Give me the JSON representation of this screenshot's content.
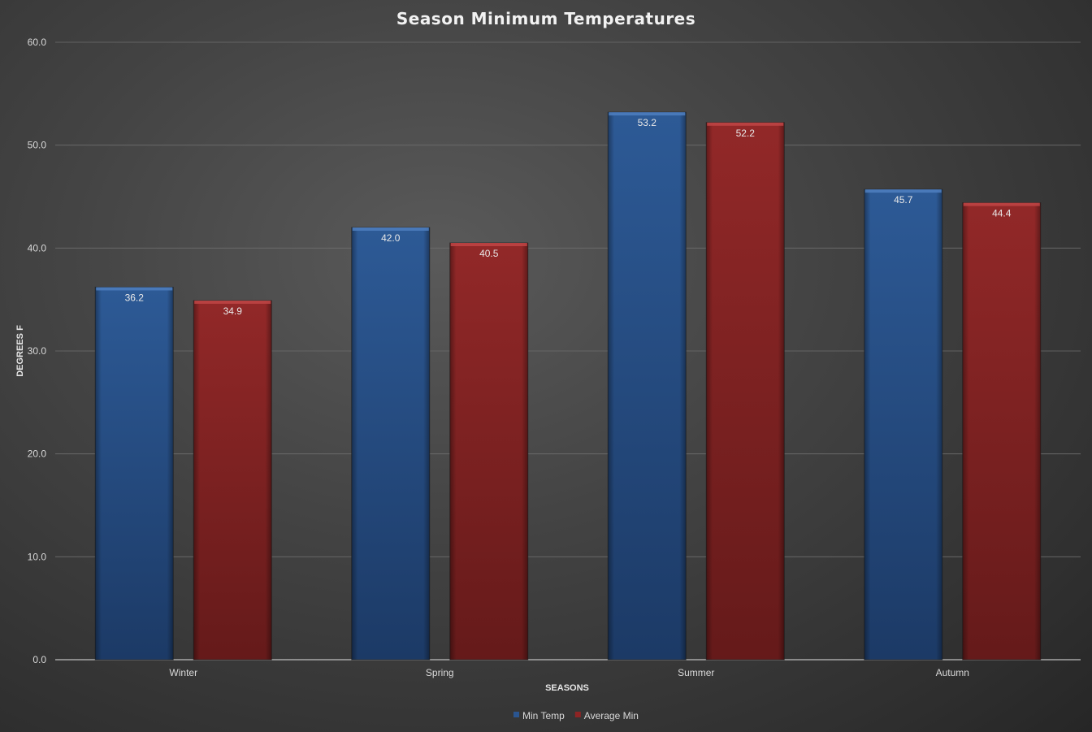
{
  "chart_data": {
    "type": "bar",
    "title": "Season Minimum Temperatures",
    "xlabel": "SEASONS",
    "ylabel": "DEGREES F",
    "categories": [
      "Winter",
      "Spring",
      "Summer",
      "Autumn"
    ],
    "series": [
      {
        "name": "Min Temp",
        "values": [
          36.2,
          42.0,
          53.2,
          45.7
        ],
        "color": "#2a5590"
      },
      {
        "name": "Average Min",
        "values": [
          34.9,
          40.5,
          52.2,
          44.4
        ],
        "color": "#8e2424"
      }
    ],
    "ylim": [
      0,
      60
    ],
    "yticks": [
      "0.0",
      "10.0",
      "20.0",
      "30.0",
      "40.0",
      "50.0",
      "60.0"
    ],
    "grid": true,
    "legend_position": "bottom"
  }
}
